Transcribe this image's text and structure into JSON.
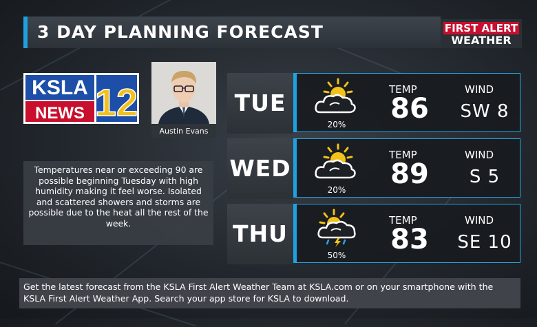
{
  "header": {
    "title": "3 DAY PLANNING FORECAST",
    "brand_line1": "FIRST ALERT",
    "brand_line2": "WEATHER"
  },
  "station_logo": {
    "text1": "KSLA",
    "text2": "NEWS",
    "channel": "12"
  },
  "meteorologist": {
    "name": "Austin Evans"
  },
  "blurb": "Temperatures near or exceeding 90 are possible beginning Tuesday with high humidity making it feel worse. Isolated and scattered showers and storms are possible due to the heat all the rest of the week.",
  "labels": {
    "temp": "TEMP",
    "wind": "WIND"
  },
  "forecast": [
    {
      "day": "TUE",
      "temp": "86",
      "wind": "SW 8",
      "precip": "20%",
      "icon": "partly-cloudy-icon"
    },
    {
      "day": "WED",
      "temp": "89",
      "wind": "S 5",
      "precip": "20%",
      "icon": "partly-cloudy-icon"
    },
    {
      "day": "THU",
      "temp": "83",
      "wind": "SE 10",
      "precip": "50%",
      "icon": "thunderstorm-sun-icon"
    }
  ],
  "footer": "Get the latest forecast from the KSLA First Alert Weather Team at KSLA.com or on your smartphone with the KSLA First Alert Weather App. Search your app store for KSLA to download.",
  "colors": {
    "accent": "#1fa0e0",
    "brand_red": "#c8102e",
    "logo_blue": "#1d4fa8",
    "sun": "#f2c21b"
  }
}
